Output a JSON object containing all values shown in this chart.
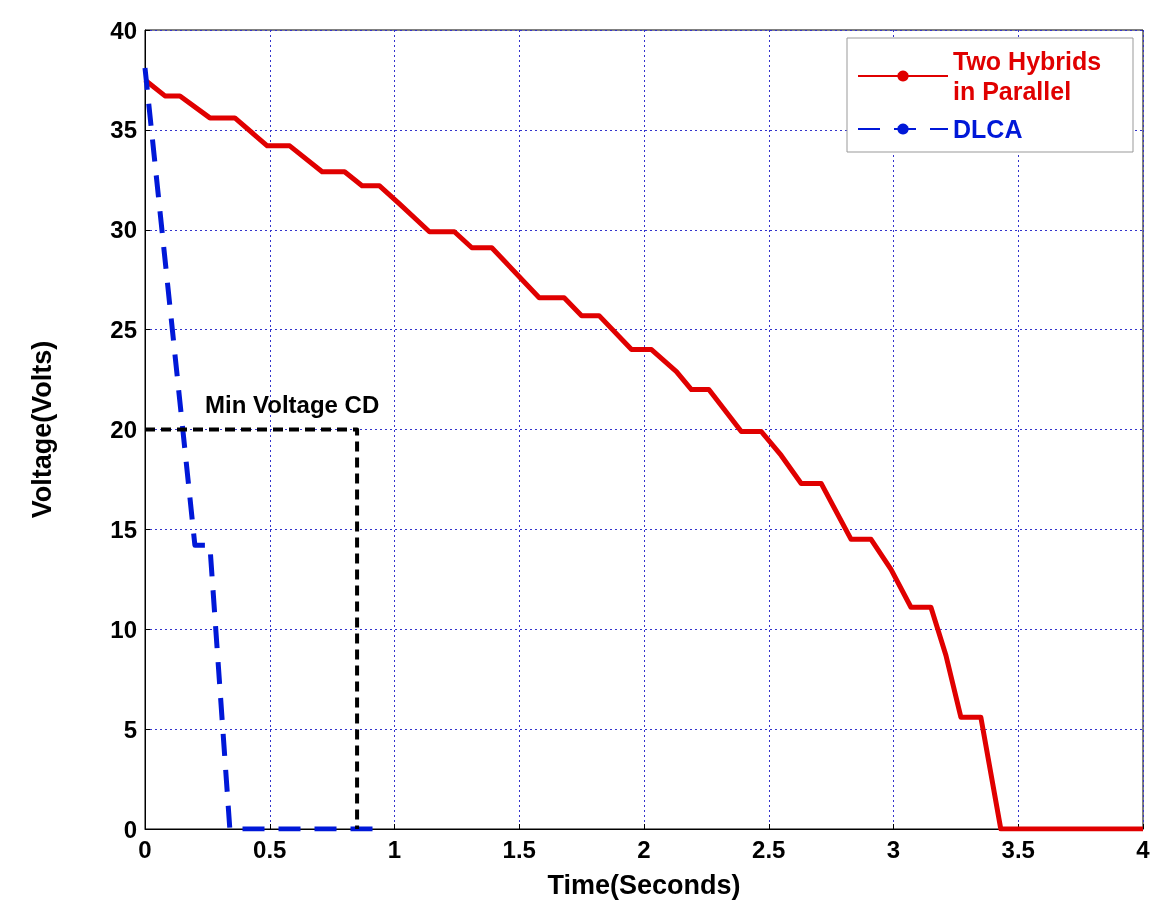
{
  "chart_data": {
    "type": "line",
    "xlabel": "Time(Seconds)",
    "ylabel": "Voltage(Volts)",
    "xlim": [
      0,
      4
    ],
    "xticks": [
      0,
      0.5,
      1,
      1.5,
      2,
      2.5,
      3,
      3.5,
      4
    ],
    "ylim": [
      0,
      40
    ],
    "yticks": [
      0,
      5,
      10,
      15,
      20,
      25,
      30,
      35,
      40
    ],
    "grid": true,
    "legend": "top right",
    "marker": "none",
    "annotations": [
      "Min Voltage CD"
    ],
    "series": [
      {
        "name": "Two Hybrids in Parallel",
        "color": "#e00000",
        "line_style": "solid",
        "x": [
          0,
          0.08,
          0.14,
          0.26,
          0.36,
          0.49,
          0.58,
          0.71,
          0.8,
          0.87,
          0.94,
          1.02,
          1.14,
          1.24,
          1.31,
          1.39,
          1.58,
          1.68,
          1.75,
          1.82,
          1.95,
          2.03,
          2.13,
          2.19,
          2.26,
          2.39,
          2.47,
          2.55,
          2.63,
          2.71,
          2.83,
          2.91,
          2.99,
          3.07,
          3.15,
          3.21,
          3.27,
          3.35,
          3.43,
          4
        ],
        "values": [
          37.5,
          36.7,
          36.7,
          35.6,
          35.6,
          34.2,
          34.2,
          32.9,
          32.9,
          32.2,
          32.2,
          31.3,
          29.9,
          29.9,
          29.1,
          29.1,
          26.6,
          26.6,
          25.7,
          25.7,
          24,
          24,
          22.9,
          22,
          22,
          19.9,
          19.9,
          18.7,
          17.3,
          17.3,
          14.5,
          14.5,
          13,
          11.1,
          11.1,
          8.7,
          5.6,
          5.6,
          0,
          0
        ]
      },
      {
        "name": "DLCA",
        "color": "#0018d8",
        "line_style": "dashed",
        "x": [
          0,
          0.2,
          0.26,
          0.34,
          0.94
        ],
        "values": [
          38.1,
          14.2,
          14.2,
          0,
          0
        ]
      },
      {
        "color": "#000000",
        "line_style": "dotted",
        "x": [
          0,
          0.85,
          0.85
        ],
        "values": [
          20,
          20,
          0
        ]
      }
    ]
  }
}
